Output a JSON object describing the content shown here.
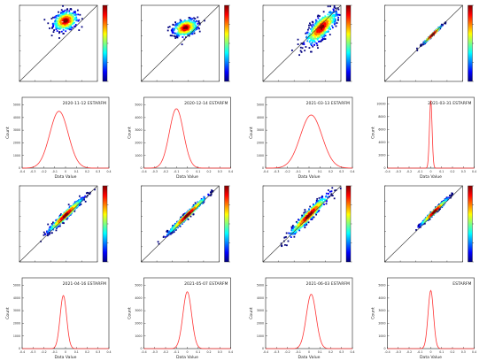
{
  "colormap": [
    "#00007f",
    "#0000ff",
    "#007fff",
    "#00ffff",
    "#7fff7f",
    "#ffff00",
    "#ff7f00",
    "#ff0000",
    "#7f0000"
  ],
  "curve_color": "#ff3333",
  "chart_data": [
    {
      "type": "scatter",
      "row": 0,
      "col": 0,
      "xlim": [
        -1,
        1.2
      ],
      "ylim": [
        -1,
        1.2
      ],
      "center": [
        0.3,
        0.75
      ],
      "spread": [
        0.17,
        0.14
      ],
      "rho": 0.25,
      "n": 460,
      "point_colors_visible": true
    },
    {
      "type": "scatter",
      "row": 0,
      "col": 1,
      "xlim": [
        -1,
        1.2
      ],
      "ylim": [
        -1,
        1.2
      ],
      "center": [
        0.25,
        0.55
      ],
      "spread": [
        0.17,
        0.12
      ],
      "rho": 0.3,
      "n": 460,
      "point_colors_visible": true
    },
    {
      "type": "scatter",
      "row": 0,
      "col": 2,
      "xlim": [
        -1,
        1.2
      ],
      "ylim": [
        -1,
        1.2
      ],
      "center": [
        0.65,
        0.55
      ],
      "spread": [
        0.22,
        0.24
      ],
      "rho": 0.75,
      "n": 560,
      "point_colors_visible": true
    },
    {
      "type": "scatter",
      "row": 0,
      "col": 3,
      "xlim": [
        -1,
        1.2
      ],
      "ylim": [
        -1,
        1.2
      ],
      "center": [
        0.35,
        0.35
      ],
      "spread": [
        0.13,
        0.13
      ],
      "rho": 0.99,
      "n": 330,
      "point_colors_visible": true
    },
    {
      "type": "line",
      "row": 1,
      "col": 0,
      "label": "2020-11-12 ESTARFM",
      "x_ticks": [
        "-0.4",
        "-0.3",
        "-0.2",
        "-0.1",
        "0",
        "0.1",
        "0.2",
        "0.3",
        "0.4"
      ],
      "xlim": [
        -0.4,
        0.4
      ],
      "y_ticks": [
        "0",
        "1000",
        "2000",
        "3000",
        "4000",
        "5000"
      ],
      "ylim": [
        0,
        5600
      ],
      "mean": -0.06,
      "sd": 0.085,
      "peak": 4500,
      "xlabel": "Data Value",
      "ylabel": "Count"
    },
    {
      "type": "line",
      "row": 1,
      "col": 1,
      "label": "2020-12-14 ESTARFM",
      "x_ticks": [
        "-0.4",
        "-0.3",
        "-0.2",
        "-0.1",
        "0",
        "0.1",
        "0.2",
        "0.3",
        "0.4"
      ],
      "xlim": [
        -0.4,
        0.4
      ],
      "y_ticks": [
        "0",
        "1000",
        "2000",
        "3000",
        "4000",
        "5000"
      ],
      "ylim": [
        0,
        5600
      ],
      "mean": -0.1,
      "sd": 0.065,
      "peak": 4700,
      "xlabel": "Data Value",
      "ylabel": "Count"
    },
    {
      "type": "line",
      "row": 1,
      "col": 2,
      "label": "2021-03-13 ESTARFM",
      "x_ticks": [
        "-0.4",
        "-0.3",
        "-0.2",
        "-0.1",
        "0",
        "0.1",
        "0.2",
        "0.3",
        "0.4"
      ],
      "xlim": [
        -0.4,
        0.4
      ],
      "y_ticks": [
        "0",
        "1000",
        "2000",
        "3000",
        "4000",
        "5000"
      ],
      "ylim": [
        0,
        5600
      ],
      "mean": 0.02,
      "sd": 0.1,
      "peak": 4200,
      "xlabel": "Data Value",
      "ylabel": "Count"
    },
    {
      "type": "line",
      "row": 1,
      "col": 3,
      "label": "2021-03-31 ESTARFM",
      "x_ticks": [
        "-0.4",
        "-0.3",
        "-0.2",
        "-0.1",
        "0",
        "0.1",
        "0.2",
        "0.3",
        "0.4"
      ],
      "xlim": [
        -0.4,
        0.4
      ],
      "y_ticks": [
        "0",
        "2000",
        "4000",
        "6000",
        "8000",
        "10000"
      ],
      "ylim": [
        0,
        11000
      ],
      "mean": 0.0,
      "sd": 0.012,
      "peak": 10500,
      "xlabel": "Data Value",
      "ylabel": "Count"
    },
    {
      "type": "scatter",
      "row": 2,
      "col": 0,
      "xlim": [
        -1,
        1.2
      ],
      "ylim": [
        -1,
        1.2
      ],
      "center": [
        0.3,
        0.35
      ],
      "spread": [
        0.25,
        0.25
      ],
      "rho": 0.97,
      "n": 520,
      "point_colors_visible": true
    },
    {
      "type": "scatter",
      "row": 2,
      "col": 1,
      "xlim": [
        -1,
        1.2
      ],
      "ylim": [
        -1,
        1.2
      ],
      "center": [
        0.3,
        0.35
      ],
      "spread": [
        0.28,
        0.28
      ],
      "rho": 0.985,
      "n": 520,
      "point_colors_visible": true
    },
    {
      "type": "scatter",
      "row": 2,
      "col": 2,
      "xlim": [
        -1,
        1.2
      ],
      "ylim": [
        -1,
        1.2
      ],
      "center": [
        0.3,
        0.35
      ],
      "spread": [
        0.28,
        0.3
      ],
      "rho": 0.96,
      "n": 560,
      "point_colors_visible": true
    },
    {
      "type": "scatter",
      "row": 2,
      "col": 3,
      "xlim": [
        -1,
        1.2
      ],
      "ylim": [
        -1,
        1.2
      ],
      "center": [
        0.4,
        0.45
      ],
      "spread": [
        0.2,
        0.2
      ],
      "rho": 0.985,
      "n": 380,
      "point_colors_visible": true
    },
    {
      "type": "line",
      "row": 3,
      "col": 0,
      "label": "2021-04-16 ESTARFM",
      "x_ticks": [
        "-0.4",
        "-0.3",
        "-0.2",
        "-0.1",
        "0",
        "0.1",
        "0.2",
        "0.3",
        "0.4"
      ],
      "xlim": [
        -0.4,
        0.4
      ],
      "y_ticks": [
        "0",
        "1000",
        "2000",
        "3000",
        "4000",
        "5000"
      ],
      "ylim": [
        0,
        5600
      ],
      "mean": -0.02,
      "sd": 0.03,
      "peak": 4200,
      "xlabel": "Data Value",
      "ylabel": "Count"
    },
    {
      "type": "line",
      "row": 3,
      "col": 1,
      "label": "2021-05-07 ESTARFM",
      "x_ticks": [
        "-0.4",
        "-0.3",
        "-0.2",
        "-0.1",
        "0",
        "0.1",
        "0.2",
        "0.3",
        "0.4"
      ],
      "xlim": [
        -0.4,
        0.4
      ],
      "y_ticks": [
        "0",
        "1000",
        "2000",
        "3000",
        "4000",
        "5000"
      ],
      "ylim": [
        0,
        5600
      ],
      "mean": 0.0,
      "sd": 0.04,
      "peak": 4500,
      "xlabel": "Data Value",
      "ylabel": "Count"
    },
    {
      "type": "line",
      "row": 3,
      "col": 2,
      "label": "2021-06-03 ESTARFM",
      "x_ticks": [
        "-0.4",
        "-0.3",
        "-0.2",
        "-0.1",
        "0",
        "0.1",
        "0.2",
        "0.3",
        "0.4"
      ],
      "xlim": [
        -0.4,
        0.4
      ],
      "y_ticks": [
        "0",
        "1000",
        "2000",
        "3000",
        "4000",
        "5000"
      ],
      "ylim": [
        0,
        5600
      ],
      "mean": 0.02,
      "sd": 0.045,
      "peak": 4300,
      "xlabel": "Data Value",
      "ylabel": "Count"
    },
    {
      "type": "line",
      "row": 3,
      "col": 3,
      "label": "ESTARFM",
      "x_ticks": [
        "-0.4",
        "-0.3",
        "-0.2",
        "-0.1",
        "0",
        "0.1",
        "0.2",
        "0.3",
        "0.4"
      ],
      "xlim": [
        -0.4,
        0.4
      ],
      "y_ticks": [
        "0",
        "1000",
        "2000",
        "3000",
        "4000",
        "5000"
      ],
      "ylim": [
        0,
        5600
      ],
      "mean": 0.0,
      "sd": 0.025,
      "peak": 4600,
      "xlabel": "Data Value",
      "ylabel": "Count"
    }
  ]
}
